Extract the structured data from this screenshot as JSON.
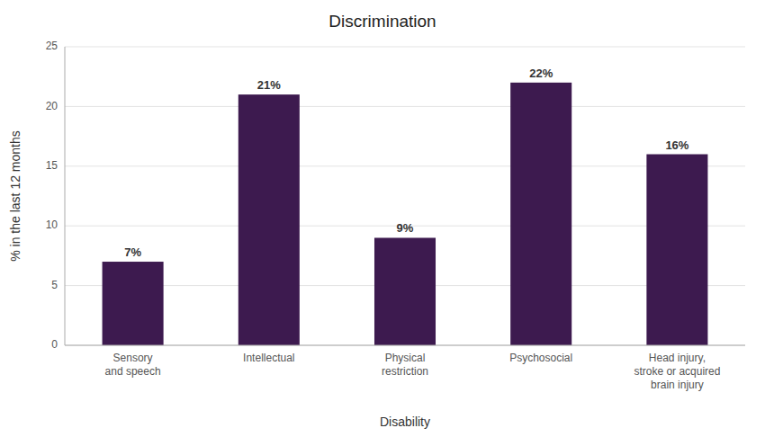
{
  "chart_data": {
    "type": "bar",
    "title": "Discrimination",
    "xlabel": "Disability",
    "ylabel": "% in the last 12 months",
    "categories": [
      "Sensory\nand speech",
      "Intellectual",
      "Physical\nrestriction",
      "Psychosocial",
      "Head injury,\nstroke or acquired\nbrain injury"
    ],
    "values": [
      7,
      21,
      9,
      22,
      16
    ],
    "value_labels": [
      "7%",
      "21%",
      "9%",
      "22%",
      "16%"
    ],
    "color": "#3D1A4F",
    "ylim": [
      0,
      25
    ],
    "yticks": [
      0,
      5,
      10,
      15,
      20,
      25
    ],
    "grid": true,
    "data_labels": true
  }
}
